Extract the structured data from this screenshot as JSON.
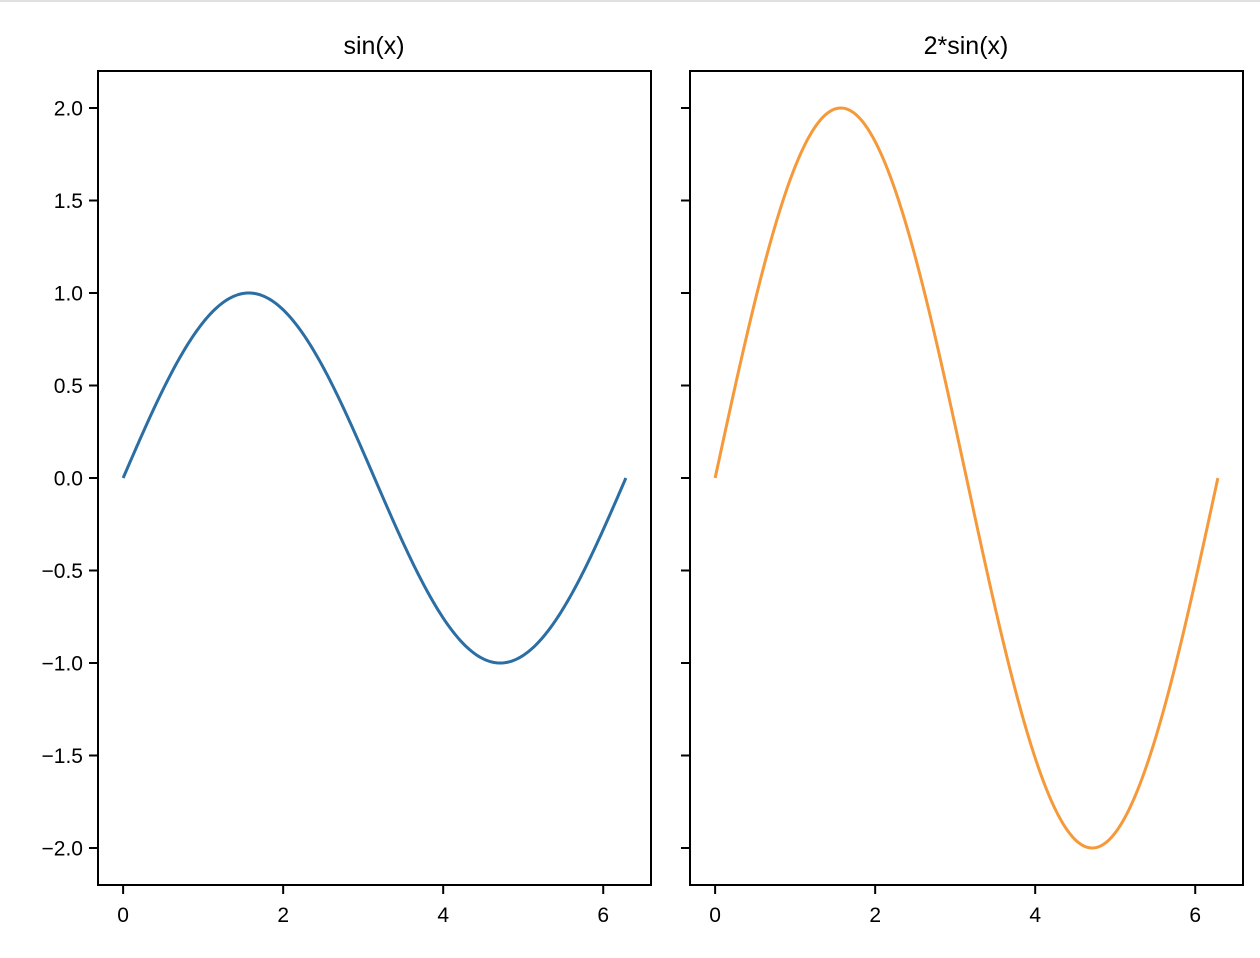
{
  "figure": {
    "subplots": [
      {
        "title": "sin(x)",
        "line_color": "#2b6ea4",
        "y_tick_labels": [
          "2.0",
          "1.5",
          "1.0",
          "0.5",
          "0.0",
          "−0.5",
          "−1.0",
          "−1.5",
          "−2.0"
        ],
        "x_tick_labels": [
          "0",
          "2",
          "4",
          "6"
        ]
      },
      {
        "title": "2*sin(x)",
        "line_color": "#f6993a",
        "y_tick_labels": [],
        "x_tick_labels": [
          "0",
          "2",
          "4",
          "6"
        ]
      }
    ]
  },
  "chart_data": [
    {
      "type": "line",
      "title": "sin(x)",
      "xlabel": "",
      "ylabel": "",
      "x_range": [
        0,
        6.283
      ],
      "xlim": [
        -0.314,
        6.597
      ],
      "ylim": [
        -2.2,
        2.2
      ],
      "x_ticks": [
        0,
        2,
        4,
        6
      ],
      "y_ticks": [
        -2.0,
        -1.5,
        -1.0,
        -0.5,
        0.0,
        0.5,
        1.0,
        1.5,
        2.0
      ],
      "grid": false,
      "legend": null,
      "series": [
        {
          "name": "sin(x)",
          "color": "#1f77b4",
          "x": [
            0,
            0.785,
            1.571,
            2.356,
            3.142,
            3.927,
            4.712,
            5.498,
            6.283
          ],
          "values": [
            0,
            0.707,
            1.0,
            0.707,
            0,
            -0.707,
            -1.0,
            -0.707,
            0
          ]
        }
      ]
    },
    {
      "type": "line",
      "title": "2*sin(x)",
      "xlabel": "",
      "ylabel": "",
      "sharey": true,
      "x_range": [
        0,
        6.283
      ],
      "xlim": [
        -0.314,
        6.597
      ],
      "ylim": [
        -2.2,
        2.2
      ],
      "x_ticks": [
        0,
        2,
        4,
        6
      ],
      "y_ticks": [
        -2.0,
        -1.5,
        -1.0,
        -0.5,
        0.0,
        0.5,
        1.0,
        1.5,
        2.0
      ],
      "grid": false,
      "legend": null,
      "series": [
        {
          "name": "2*sin(x)",
          "color": "#ff7f0e",
          "x": [
            0,
            0.785,
            1.571,
            2.356,
            3.142,
            3.927,
            4.712,
            5.498,
            6.283
          ],
          "values": [
            0,
            1.414,
            2.0,
            1.414,
            0,
            -1.414,
            -2.0,
            -1.414,
            0
          ]
        }
      ]
    }
  ]
}
